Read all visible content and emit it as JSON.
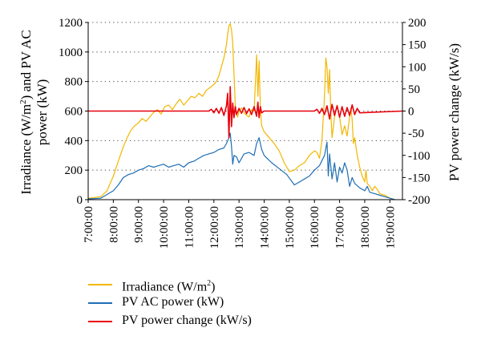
{
  "chart_data": {
    "type": "line",
    "xlabel": "",
    "ylabel_left_parts": [
      "Irradiance (W/m",
      "2",
      ") and PV AC",
      "power (kW)"
    ],
    "ylabel_right": "PV power change (kW/s)",
    "xlim": [
      7,
      19.5
    ],
    "xticks": [
      7,
      8,
      9,
      10,
      11,
      12,
      13,
      14,
      15,
      16,
      17,
      18,
      19
    ],
    "xtick_labels": [
      "7:00:00",
      "8:00:00",
      "9:00:00",
      "10:00:00",
      "11:00:00",
      "12:00:00",
      "13:00:00",
      "14:00:00",
      "15:00:00",
      "16:00:00",
      "17:00:00",
      "18:00:00",
      "19:00:00"
    ],
    "ylim_left": [
      0,
      1200
    ],
    "yticks_left": [
      0,
      200,
      400,
      600,
      800,
      1000,
      1200
    ],
    "ylim_right": [
      -200,
      200
    ],
    "yticks_right": [
      -200,
      -150,
      -100,
      -50,
      0,
      50,
      100,
      150,
      200
    ],
    "grid": "horizontal dotted",
    "legend_position": "bottom",
    "series": [
      {
        "name": "Irradiance (W/m2)",
        "label_parts": [
          "Irradiance (W/m",
          "2",
          ")"
        ],
        "axis": "left",
        "color": "#f2b700",
        "x": [
          7.0,
          7.5,
          7.75,
          8.0,
          8.2,
          8.4,
          8.55,
          8.7,
          8.85,
          9.0,
          9.15,
          9.3,
          9.45,
          9.6,
          9.75,
          9.9,
          10.05,
          10.2,
          10.35,
          10.5,
          10.65,
          10.8,
          10.95,
          11.1,
          11.25,
          11.4,
          11.55,
          11.7,
          11.85,
          12.0,
          12.1,
          12.2,
          12.3,
          12.4,
          12.5,
          12.55,
          12.6,
          12.65,
          12.7,
          12.75,
          12.8,
          12.85,
          12.9,
          12.95,
          13.0,
          13.1,
          13.2,
          13.3,
          13.4,
          13.5,
          13.6,
          13.7,
          13.75,
          13.8,
          13.85,
          13.9,
          14.0,
          14.2,
          14.4,
          14.6,
          14.8,
          15.0,
          15.2,
          15.4,
          15.6,
          15.8,
          16.0,
          16.1,
          16.2,
          16.3,
          16.4,
          16.45,
          16.5,
          16.55,
          16.6,
          16.65,
          16.7,
          16.8,
          16.9,
          17.0,
          17.1,
          17.2,
          17.3,
          17.4,
          17.45,
          17.5,
          17.55,
          17.6,
          17.7,
          17.8,
          17.9,
          18.0,
          18.05,
          18.1,
          18.2,
          18.3,
          18.4,
          18.5,
          18.6,
          18.8,
          19.0,
          19.2
        ],
        "values": [
          10,
          20,
          60,
          160,
          260,
          360,
          420,
          470,
          500,
          520,
          550,
          530,
          560,
          590,
          610,
          580,
          630,
          640,
          610,
          650,
          680,
          640,
          670,
          700,
          690,
          720,
          700,
          740,
          760,
          780,
          800,
          840,
          900,
          960,
          1050,
          1120,
          1180,
          1190,
          1150,
          1060,
          850,
          640,
          580,
          560,
          600,
          620,
          590,
          570,
          560,
          610,
          600,
          980,
          700,
          940,
          620,
          500,
          460,
          420,
          380,
          330,
          250,
          190,
          200,
          230,
          250,
          300,
          330,
          320,
          280,
          400,
          700,
          960,
          900,
          720,
          880,
          600,
          420,
          560,
          640,
          560,
          440,
          500,
          430,
          560,
          620,
          540,
          380,
          420,
          300,
          220,
          160,
          120,
          200,
          110,
          90,
          60,
          90,
          70,
          40,
          30,
          10,
          0
        ]
      },
      {
        "name": "PV AC power (kW)",
        "label_parts": [
          "PV AC power (kW)"
        ],
        "axis": "left",
        "color": "#1f6eb4",
        "x": [
          7.0,
          7.5,
          8.0,
          8.2,
          8.4,
          8.6,
          8.8,
          9.0,
          9.2,
          9.4,
          9.6,
          9.8,
          10.0,
          10.2,
          10.4,
          10.6,
          10.8,
          11.0,
          11.2,
          11.4,
          11.6,
          11.8,
          12.0,
          12.2,
          12.4,
          12.5,
          12.6,
          12.65,
          12.7,
          12.75,
          12.8,
          12.9,
          13.0,
          13.2,
          13.4,
          13.6,
          13.7,
          13.8,
          13.9,
          14.0,
          14.3,
          14.6,
          14.9,
          15.2,
          15.5,
          15.8,
          16.0,
          16.2,
          16.4,
          16.5,
          16.55,
          16.6,
          16.7,
          16.8,
          16.9,
          17.0,
          17.1,
          17.2,
          17.3,
          17.4,
          17.5,
          17.6,
          17.8,
          18.0,
          18.1,
          18.2,
          18.4,
          18.6,
          18.8,
          19.0,
          19.2
        ],
        "values": [
          5,
          10,
          60,
          100,
          150,
          170,
          180,
          200,
          210,
          230,
          220,
          230,
          240,
          220,
          230,
          240,
          220,
          250,
          260,
          280,
          300,
          310,
          320,
          340,
          350,
          380,
          420,
          450,
          360,
          240,
          300,
          290,
          250,
          310,
          320,
          300,
          380,
          420,
          340,
          300,
          250,
          210,
          170,
          100,
          130,
          160,
          200,
          230,
          300,
          390,
          160,
          310,
          140,
          250,
          120,
          220,
          180,
          250,
          200,
          90,
          150,
          110,
          80,
          60,
          90,
          50,
          40,
          30,
          20,
          10,
          0
        ]
      },
      {
        "name": "PV power change (kW/s)",
        "label_parts": [
          "PV power change (kW/s)"
        ],
        "axis": "right",
        "color": "#e8000b",
        "x": [
          7.0,
          11.8,
          11.9,
          12.0,
          12.1,
          12.2,
          12.3,
          12.4,
          12.5,
          12.55,
          12.6,
          12.65,
          12.7,
          12.75,
          12.8,
          12.85,
          12.9,
          13.0,
          13.1,
          13.2,
          13.3,
          13.4,
          13.5,
          13.6,
          13.7,
          13.75,
          13.8,
          13.85,
          13.9,
          14.0,
          16.0,
          16.1,
          16.2,
          16.3,
          16.4,
          16.5,
          16.6,
          16.7,
          16.8,
          16.9,
          17.0,
          17.1,
          17.2,
          17.3,
          17.4,
          17.5,
          17.6,
          17.7,
          17.8,
          19.5
        ],
        "values": [
          0,
          0,
          4,
          -4,
          6,
          -5,
          8,
          -10,
          12,
          40,
          -60,
          55,
          -35,
          18,
          -15,
          10,
          -8,
          6,
          -5,
          8,
          -6,
          5,
          -8,
          10,
          -12,
          20,
          -15,
          10,
          -4,
          0,
          0,
          4,
          -5,
          6,
          -8,
          12,
          -18,
          15,
          -10,
          12,
          -14,
          10,
          -12,
          8,
          -10,
          14,
          -8,
          6,
          -4,
          0
        ]
      }
    ]
  }
}
